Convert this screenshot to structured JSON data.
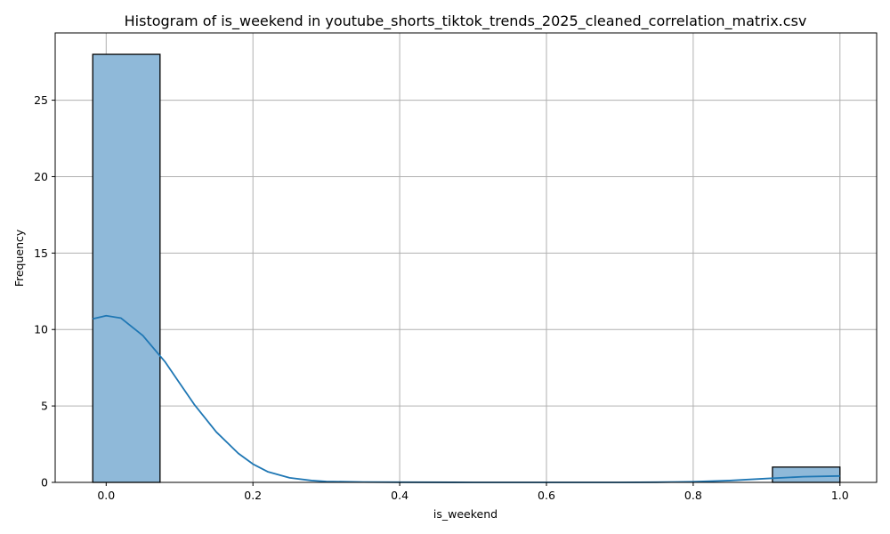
{
  "chart_data": {
    "type": "bar",
    "title": "Histogram of is_weekend in youtube_shorts_tiktok_trends_2025_cleaned_correlation_matrix.csv",
    "xlabel": "is_weekend",
    "ylabel": "Frequency",
    "xlim": [
      -0.0695,
      1.05
    ],
    "ylim": [
      0,
      29.4
    ],
    "xticks": [
      0.0,
      0.2,
      0.4,
      0.6,
      0.8,
      1.0
    ],
    "xtick_labels": [
      "0.0",
      "0.2",
      "0.4",
      "0.6",
      "0.8",
      "1.0"
    ],
    "yticks": [
      0,
      5,
      10,
      15,
      20,
      25
    ],
    "ytick_labels": [
      "0",
      "5",
      "10",
      "15",
      "20",
      "25"
    ],
    "grid": true,
    "bins": [
      {
        "x0": -0.0183,
        "x1": 0.0734,
        "count": 28
      },
      {
        "x0": 0.0734,
        "x1": 0.165,
        "count": 0
      },
      {
        "x0": 0.165,
        "x1": 0.257,
        "count": 0
      },
      {
        "x0": 0.257,
        "x1": 0.349,
        "count": 0
      },
      {
        "x0": 0.349,
        "x1": 0.44,
        "count": 0
      },
      {
        "x0": 0.44,
        "x1": 0.532,
        "count": 0
      },
      {
        "x0": 0.532,
        "x1": 0.624,
        "count": 0
      },
      {
        "x0": 0.624,
        "x1": 0.716,
        "count": 0
      },
      {
        "x0": 0.716,
        "x1": 0.807,
        "count": 0
      },
      {
        "x0": 0.807,
        "x1": 0.908,
        "count": 0
      },
      {
        "x0": 0.908,
        "x1": 1.0,
        "count": 1
      }
    ],
    "kde": {
      "x": [
        -0.0183,
        0.0,
        0.02,
        0.05,
        0.08,
        0.1,
        0.12,
        0.15,
        0.18,
        0.2,
        0.22,
        0.25,
        0.28,
        0.3,
        0.35,
        0.4,
        0.5,
        0.6,
        0.7,
        0.75,
        0.8,
        0.85,
        0.9,
        0.95,
        1.0
      ],
      "y": [
        10.7,
        10.9,
        10.75,
        9.6,
        7.9,
        6.5,
        5.1,
        3.3,
        1.9,
        1.2,
        0.7,
        0.3,
        0.12,
        0.06,
        0.02,
        0.01,
        0.0,
        0.0,
        0.0,
        0.01,
        0.04,
        0.12,
        0.25,
        0.37,
        0.42
      ]
    },
    "colors": {
      "bar_fill": "#8fb9d9",
      "bar_edge": "#000000",
      "kde_line": "#1f77b4",
      "grid": "#b0b0b0"
    }
  }
}
